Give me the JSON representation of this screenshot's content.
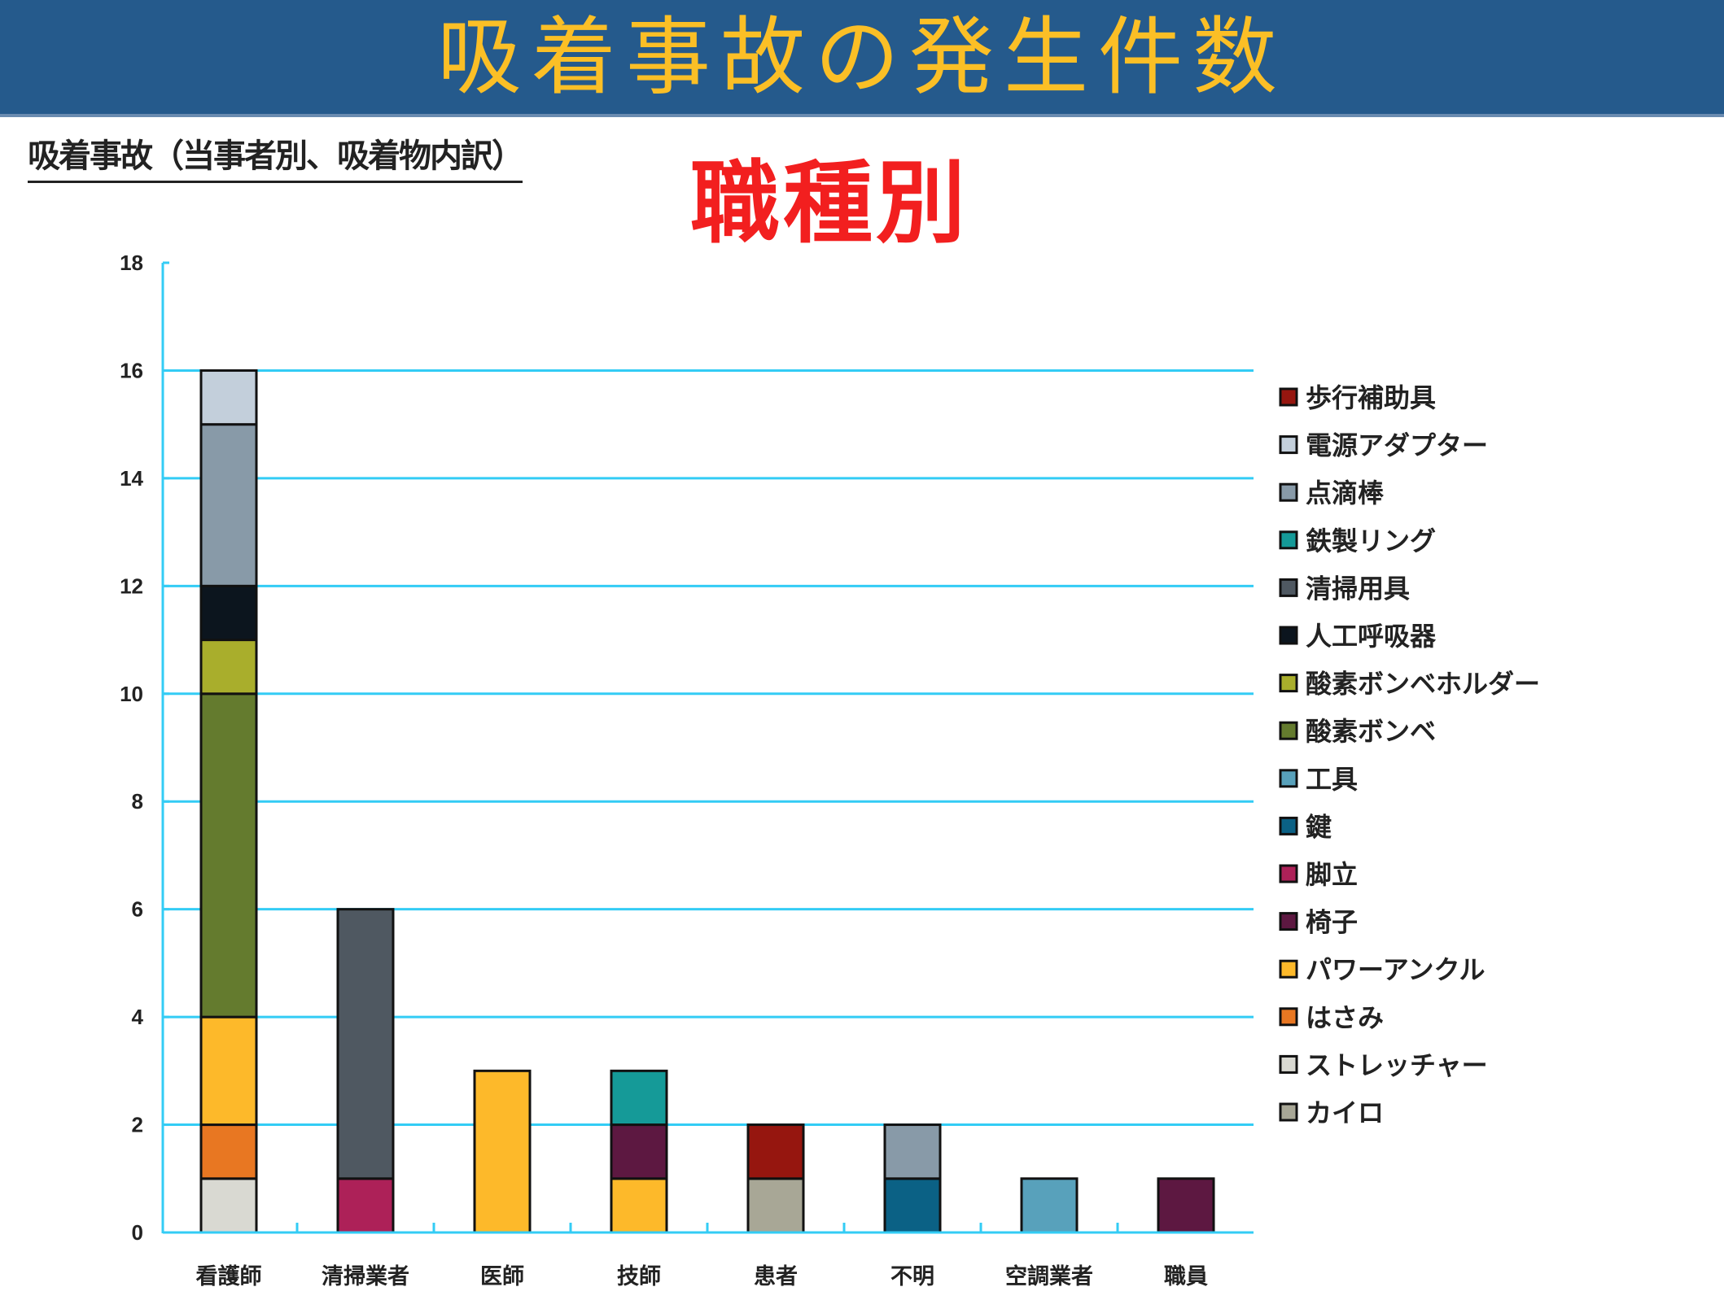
{
  "header": {
    "title": "吸着事故の発生件数",
    "background": "#255a8c",
    "title_color": "#fbbf26"
  },
  "subtitle": "吸着事故（当事者別、吸着物内訳）",
  "overlay_label": "職種別",
  "chart_data": {
    "type": "bar",
    "stacked": true,
    "title": "吸着事故（当事者別、吸着物内訳）",
    "xlabel": "",
    "ylabel": "",
    "ylim": [
      0,
      18
    ],
    "yticks": [
      0,
      2,
      4,
      6,
      8,
      10,
      12,
      14,
      16,
      18
    ],
    "grid": true,
    "legend_position": "right",
    "categories": [
      "看護師",
      "清掃業者",
      "医師",
      "技師",
      "患者",
      "不明",
      "空調業者",
      "職員"
    ],
    "series": [
      {
        "name": "カイロ",
        "color": "#a8a796",
        "values": [
          0,
          0,
          0,
          0,
          1,
          0,
          0,
          0
        ]
      },
      {
        "name": "ストレッチャー",
        "color": "#d9d9d2",
        "values": [
          1,
          0,
          0,
          0,
          0,
          0,
          0,
          0
        ]
      },
      {
        "name": "はさみ",
        "color": "#e87722",
        "values": [
          1,
          0,
          0,
          0,
          0,
          0,
          0,
          0
        ]
      },
      {
        "name": "パワーアンクル",
        "color": "#fdb92a",
        "values": [
          2,
          0,
          3,
          1,
          0,
          0,
          0,
          0
        ]
      },
      {
        "name": "椅子",
        "color": "#5d1841",
        "values": [
          0,
          0,
          0,
          1,
          0,
          0,
          0,
          1
        ]
      },
      {
        "name": "脚立",
        "color": "#ad2158",
        "values": [
          0,
          1,
          0,
          0,
          0,
          0,
          0,
          0
        ]
      },
      {
        "name": "鍵",
        "color": "#0b6185",
        "values": [
          0,
          0,
          0,
          0,
          0,
          1,
          0,
          0
        ]
      },
      {
        "name": "工具",
        "color": "#58a1bb",
        "values": [
          0,
          0,
          0,
          0,
          0,
          0,
          1,
          0
        ]
      },
      {
        "name": "酸素ボンベ",
        "color": "#647b2e",
        "values": [
          6,
          0,
          0,
          0,
          0,
          0,
          0,
          0
        ]
      },
      {
        "name": "酸素ボンベホルダー",
        "color": "#a9ae2c",
        "values": [
          1,
          0,
          0,
          0,
          0,
          0,
          0,
          0
        ]
      },
      {
        "name": "人工呼吸器",
        "color": "#0c151e",
        "values": [
          1,
          0,
          0,
          0,
          0,
          0,
          0,
          0
        ]
      },
      {
        "name": "清掃用具",
        "color": "#4f5861",
        "values": [
          0,
          5,
          0,
          0,
          0,
          0,
          0,
          0
        ]
      },
      {
        "name": "鉄製リング",
        "color": "#159a98",
        "values": [
          0,
          0,
          0,
          1,
          0,
          0,
          0,
          0
        ]
      },
      {
        "name": "点滴棒",
        "color": "#889aa8",
        "values": [
          3,
          0,
          0,
          0,
          0,
          1,
          0,
          0
        ]
      },
      {
        "name": "電源アダプター",
        "color": "#c3cfdb",
        "values": [
          1,
          0,
          0,
          0,
          0,
          0,
          0,
          0
        ]
      },
      {
        "name": "歩行補助具",
        "color": "#96160f",
        "values": [
          0,
          0,
          0,
          0,
          1,
          0,
          0,
          0
        ]
      }
    ],
    "legend_order": [
      "歩行補助具",
      "電源アダプター",
      "点滴棒",
      "鉄製リング",
      "清掃用具",
      "人工呼吸器",
      "酸素ボンベホルダー",
      "酸素ボンベ",
      "工具",
      "鍵",
      "脚立",
      "椅子",
      "パワーアンクル",
      "はさみ",
      "ストレッチャー",
      "カイロ"
    ],
    "totals": [
      16,
      6,
      3,
      3,
      2,
      2,
      1,
      1
    ],
    "axis_color": "#33ccf5",
    "grid_color": "#33ccf5"
  }
}
